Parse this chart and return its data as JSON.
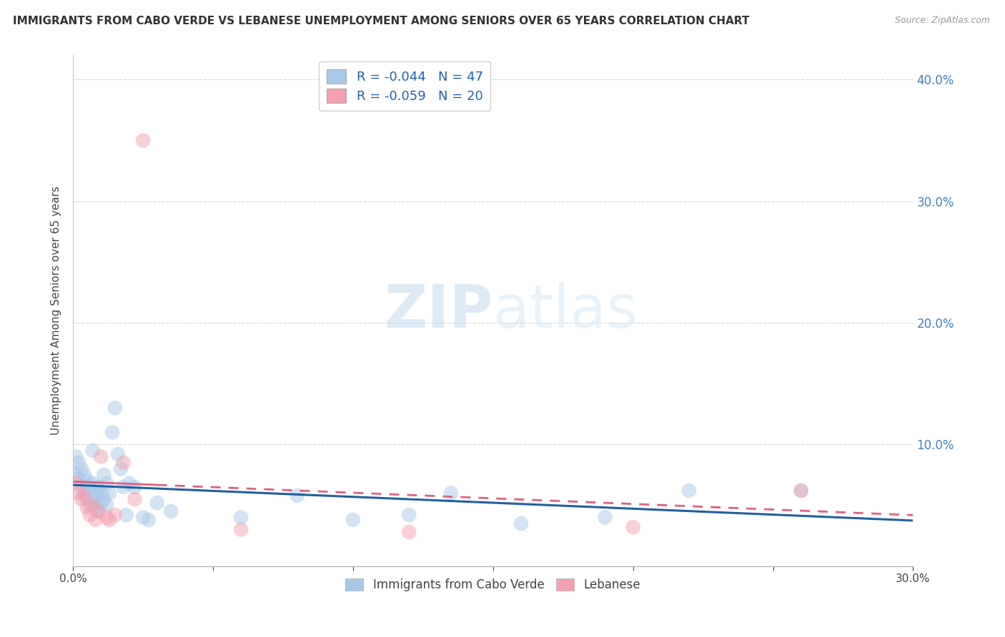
{
  "title": "IMMIGRANTS FROM CABO VERDE VS LEBANESE UNEMPLOYMENT AMONG SENIORS OVER 65 YEARS CORRELATION CHART",
  "source": "Source: ZipAtlas.com",
  "ylabel": "Unemployment Among Seniors over 65 years",
  "xlim": [
    0.0,
    0.3
  ],
  "ylim": [
    0.0,
    0.42
  ],
  "legend_r1": "-0.044",
  "legend_n1": "47",
  "legend_r2": "-0.059",
  "legend_n2": "20",
  "color_blue": "#a8c8e8",
  "color_pink": "#f4a0b0",
  "color_blue_line": "#2060a0",
  "color_pink_line": "#e06080",
  "background_color": "#ffffff",
  "grid_color": "#cccccc",
  "cabo_verde_x": [
    0.001,
    0.001,
    0.002,
    0.002,
    0.003,
    0.003,
    0.004,
    0.004,
    0.005,
    0.005,
    0.006,
    0.006,
    0.007,
    0.007,
    0.007,
    0.008,
    0.008,
    0.009,
    0.009,
    0.01,
    0.01,
    0.011,
    0.011,
    0.012,
    0.012,
    0.013,
    0.014,
    0.015,
    0.016,
    0.017,
    0.018,
    0.019,
    0.02,
    0.022,
    0.025,
    0.027,
    0.03,
    0.035,
    0.06,
    0.08,
    0.1,
    0.12,
    0.135,
    0.16,
    0.19,
    0.22,
    0.26
  ],
  "cabo_verde_y": [
    0.09,
    0.075,
    0.085,
    0.072,
    0.08,
    0.065,
    0.075,
    0.06,
    0.07,
    0.055,
    0.065,
    0.05,
    0.095,
    0.068,
    0.055,
    0.06,
    0.048,
    0.065,
    0.045,
    0.06,
    0.052,
    0.075,
    0.055,
    0.068,
    0.05,
    0.06,
    0.11,
    0.13,
    0.092,
    0.08,
    0.065,
    0.042,
    0.068,
    0.065,
    0.04,
    0.038,
    0.052,
    0.045,
    0.04,
    0.058,
    0.038,
    0.042,
    0.06,
    0.035,
    0.04,
    0.062,
    0.062
  ],
  "lebanese_x": [
    0.001,
    0.002,
    0.003,
    0.004,
    0.005,
    0.006,
    0.007,
    0.008,
    0.009,
    0.01,
    0.012,
    0.013,
    0.015,
    0.018,
    0.022,
    0.025,
    0.06,
    0.12,
    0.2,
    0.26
  ],
  "lebanese_y": [
    0.068,
    0.06,
    0.055,
    0.058,
    0.048,
    0.042,
    0.05,
    0.038,
    0.045,
    0.09,
    0.04,
    0.038,
    0.042,
    0.085,
    0.055,
    0.35,
    0.03,
    0.028,
    0.032,
    0.062
  ]
}
